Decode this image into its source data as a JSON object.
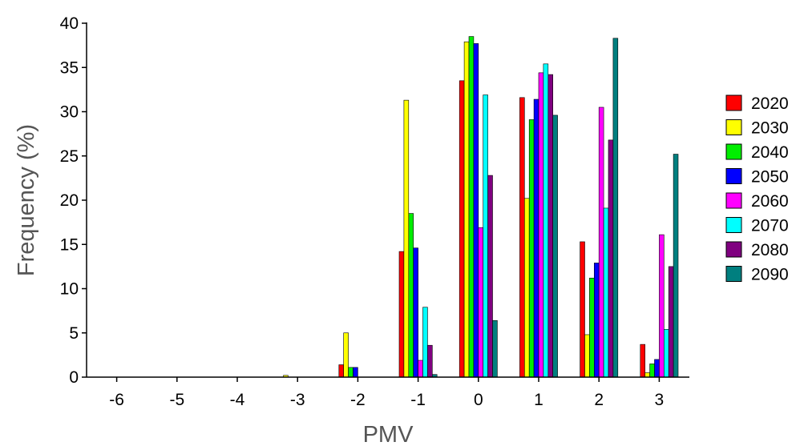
{
  "chart_data": {
    "type": "bar",
    "title": "",
    "xlabel": "PMV",
    "ylabel": "Frequency (%)",
    "ylim": [
      0,
      40
    ],
    "yticks": [
      0,
      5,
      10,
      15,
      20,
      25,
      30,
      35,
      40
    ],
    "categories": [
      "-6",
      "-5",
      "-4",
      "-3",
      "-2",
      "-1",
      "0",
      "1",
      "2",
      "3"
    ],
    "grid": false,
    "legend_position": "right",
    "series": [
      {
        "name": "2020",
        "color": "#ff0000",
        "values": [
          0,
          0,
          0,
          0,
          1.4,
          14.2,
          33.5,
          31.6,
          15.3,
          3.7
        ]
      },
      {
        "name": "2030",
        "color": "#ffff00",
        "values": [
          0,
          0,
          0,
          0.2,
          5.0,
          31.3,
          37.9,
          20.2,
          4.8,
          0.5
        ]
      },
      {
        "name": "2040",
        "color": "#00ee00",
        "values": [
          0,
          0,
          0,
          0,
          1.1,
          18.5,
          38.5,
          29.1,
          11.2,
          1.5
        ]
      },
      {
        "name": "2050",
        "color": "#0000ff",
        "values": [
          0,
          0,
          0,
          0,
          1.1,
          14.6,
          37.7,
          31.4,
          12.9,
          2.0
        ]
      },
      {
        "name": "2060",
        "color": "#ff00ff",
        "values": [
          0,
          0,
          0,
          0,
          0,
          1.9,
          16.9,
          34.4,
          30.5,
          16.1
        ]
      },
      {
        "name": "2070",
        "color": "#00ffff",
        "values": [
          0,
          0,
          0,
          0,
          0,
          7.9,
          31.9,
          35.4,
          19.1,
          5.4
        ]
      },
      {
        "name": "2080",
        "color": "#800080",
        "values": [
          0,
          0,
          0,
          0,
          0,
          3.6,
          22.8,
          34.2,
          26.8,
          12.5
        ]
      },
      {
        "name": "2090",
        "color": "#007f7f",
        "values": [
          0,
          0,
          0,
          0,
          0,
          0.3,
          6.4,
          29.6,
          38.3,
          25.2
        ]
      }
    ]
  }
}
